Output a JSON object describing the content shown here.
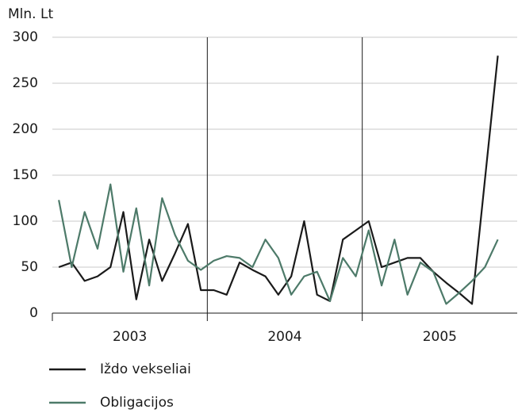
{
  "chart_data": {
    "type": "line",
    "y_label": "Mln. Lt",
    "groups": [
      "2003",
      "2004",
      "2005"
    ],
    "categories": [
      null,
      null,
      null,
      null,
      null,
      null,
      null,
      null,
      null,
      null,
      null,
      null,
      null,
      null,
      null,
      null,
      null,
      null,
      null,
      null,
      null,
      null,
      null,
      null,
      null,
      null,
      null,
      null,
      null,
      null,
      null,
      null,
      null,
      null,
      null
    ],
    "series": [
      {
        "name": "Iždo vekseliai",
        "color": "#1a1a1a",
        "values": [
          50,
          55,
          35,
          40,
          50,
          110,
          15,
          80,
          35,
          65,
          97,
          25,
          25,
          20,
          55,
          47,
          40,
          20,
          40,
          100,
          20,
          13,
          80,
          90,
          100,
          50,
          55,
          60,
          60,
          45,
          33,
          22,
          10,
          145,
          280
        ]
      },
      {
        "name": "Obligacijos",
        "color": "#4d7a69",
        "values": [
          123,
          50,
          110,
          70,
          140,
          45,
          114,
          30,
          125,
          85,
          57,
          47,
          57,
          62,
          60,
          50,
          80,
          60,
          20,
          40,
          45,
          13,
          60,
          40,
          90,
          30,
          80,
          20,
          55,
          45,
          10,
          22,
          35,
          50,
          80
        ]
      }
    ],
    "ylim": [
      0,
      300
    ],
    "yticks": [
      0,
      50,
      100,
      150,
      200,
      250,
      300
    ],
    "grid": true
  }
}
